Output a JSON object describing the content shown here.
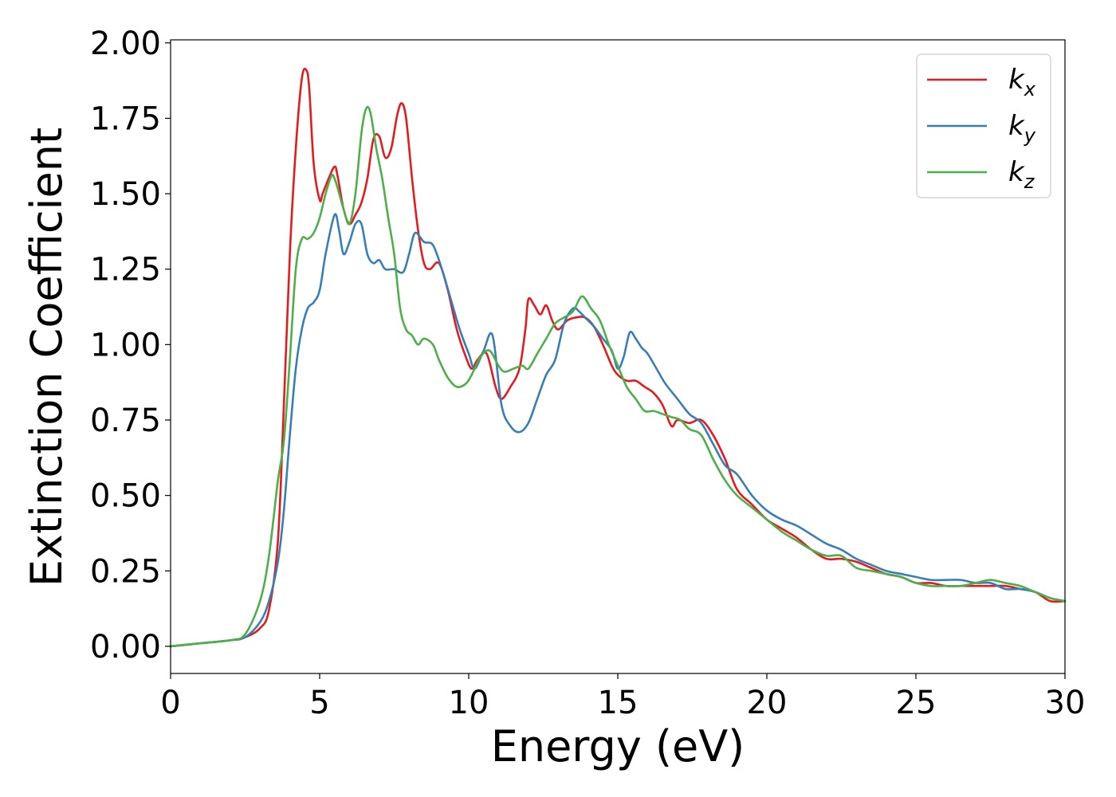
{
  "chart_data": {
    "type": "line",
    "title": "",
    "xlabel": "Energy (eV)",
    "ylabel": "Extinction Coefficient",
    "xlim": [
      0,
      30
    ],
    "ylim": [
      -0.09,
      2.01
    ],
    "xticks": [
      0,
      5,
      10,
      15,
      20,
      25,
      30
    ],
    "xtick_labels": [
      "0",
      "5",
      "10",
      "15",
      "20",
      "25",
      "30"
    ],
    "yticks": [
      0.0,
      0.25,
      0.5,
      0.75,
      1.0,
      1.25,
      1.5,
      1.75,
      2.0
    ],
    "ytick_labels": [
      "0.00",
      "0.25",
      "0.50",
      "0.75",
      "1.00",
      "1.25",
      "1.50",
      "1.75",
      "2.00"
    ],
    "grid": false,
    "legend_position": "top-right",
    "series": [
      {
        "name": "k",
        "subscript": "x",
        "color": "#e41a1c",
        "x": [
          0,
          1,
          2,
          2.5,
          3,
          3.3,
          3.6,
          3.8,
          4.0,
          4.2,
          4.4,
          4.55,
          4.65,
          4.8,
          5.0,
          5.1,
          5.3,
          5.5,
          5.6,
          5.8,
          6.0,
          6.2,
          6.4,
          6.6,
          6.8,
          7.0,
          7.2,
          7.4,
          7.6,
          7.75,
          7.9,
          8.1,
          8.3,
          8.5,
          8.7,
          9.0,
          9.3,
          9.6,
          9.9,
          10.1,
          10.3,
          10.6,
          10.9,
          11.1,
          11.4,
          11.7,
          11.9,
          12.0,
          12.2,
          12.4,
          12.6,
          12.8,
          13.0,
          13.3,
          13.6,
          13.9,
          14.2,
          14.5,
          14.8,
          15.0,
          15.3,
          15.6,
          15.9,
          16.2,
          16.5,
          16.8,
          17.0,
          17.4,
          17.8,
          18.2,
          18.6,
          19.0,
          19.5,
          20.0,
          20.5,
          21.0,
          21.5,
          22.0,
          22.5,
          23.0,
          23.5,
          24.0,
          24.5,
          25.0,
          25.5,
          26.0,
          26.5,
          27.0,
          27.5,
          28.0,
          28.5,
          29.0,
          29.5,
          30.0
        ],
        "y": [
          0.0,
          0.01,
          0.02,
          0.03,
          0.06,
          0.12,
          0.35,
          0.8,
          1.3,
          1.65,
          1.88,
          1.91,
          1.85,
          1.6,
          1.48,
          1.5,
          1.55,
          1.59,
          1.56,
          1.45,
          1.4,
          1.43,
          1.47,
          1.55,
          1.68,
          1.69,
          1.62,
          1.65,
          1.76,
          1.8,
          1.75,
          1.55,
          1.38,
          1.27,
          1.25,
          1.27,
          1.18,
          1.05,
          0.96,
          0.92,
          0.95,
          0.97,
          0.86,
          0.82,
          0.86,
          0.92,
          1.05,
          1.15,
          1.13,
          1.1,
          1.13,
          1.08,
          1.05,
          1.08,
          1.09,
          1.09,
          1.06,
          1.0,
          0.93,
          0.9,
          0.88,
          0.88,
          0.86,
          0.84,
          0.8,
          0.73,
          0.75,
          0.74,
          0.75,
          0.7,
          0.62,
          0.52,
          0.47,
          0.42,
          0.39,
          0.36,
          0.32,
          0.29,
          0.29,
          0.28,
          0.26,
          0.24,
          0.23,
          0.21,
          0.21,
          0.2,
          0.2,
          0.2,
          0.2,
          0.2,
          0.19,
          0.18,
          0.15,
          0.15
        ]
      },
      {
        "name": "k",
        "subscript": "y",
        "color": "#377eb8",
        "x": [
          0,
          1,
          2,
          2.5,
          3,
          3.3,
          3.6,
          3.8,
          4.0,
          4.2,
          4.4,
          4.6,
          4.8,
          5.0,
          5.2,
          5.5,
          5.65,
          5.8,
          6.0,
          6.2,
          6.4,
          6.6,
          6.8,
          7.0,
          7.2,
          7.5,
          7.8,
          8.0,
          8.2,
          8.5,
          8.8,
          9.1,
          9.4,
          9.7,
          10.0,
          10.2,
          10.5,
          10.8,
          11.1,
          11.4,
          11.7,
          12.0,
          12.3,
          12.6,
          12.9,
          13.2,
          13.5,
          13.7,
          13.9,
          14.2,
          14.5,
          14.8,
          15.0,
          15.2,
          15.4,
          15.6,
          15.8,
          16.0,
          16.3,
          16.6,
          17.0,
          17.4,
          17.8,
          18.2,
          18.6,
          19.0,
          19.5,
          20.0,
          20.5,
          21.0,
          21.5,
          22.0,
          22.5,
          23.0,
          23.5,
          24.0,
          24.5,
          25.0,
          25.5,
          26.0,
          26.5,
          27.0,
          27.5,
          28.0,
          28.5,
          29.0,
          29.5,
          30.0
        ],
        "y": [
          0.0,
          0.01,
          0.02,
          0.03,
          0.08,
          0.15,
          0.28,
          0.45,
          0.7,
          0.92,
          1.05,
          1.12,
          1.14,
          1.18,
          1.3,
          1.43,
          1.38,
          1.3,
          1.34,
          1.4,
          1.4,
          1.3,
          1.27,
          1.28,
          1.25,
          1.25,
          1.24,
          1.3,
          1.37,
          1.34,
          1.33,
          1.25,
          1.15,
          1.05,
          0.97,
          0.92,
          0.98,
          1.03,
          0.8,
          0.73,
          0.71,
          0.74,
          0.82,
          0.9,
          0.95,
          1.07,
          1.12,
          1.11,
          1.09,
          1.06,
          1.02,
          0.98,
          0.92,
          0.96,
          1.04,
          1.02,
          0.99,
          0.97,
          0.92,
          0.87,
          0.82,
          0.77,
          0.74,
          0.67,
          0.6,
          0.57,
          0.5,
          0.45,
          0.42,
          0.4,
          0.37,
          0.34,
          0.32,
          0.29,
          0.27,
          0.25,
          0.24,
          0.23,
          0.22,
          0.22,
          0.22,
          0.21,
          0.21,
          0.19,
          0.19,
          0.18,
          0.16,
          0.15
        ]
      },
      {
        "name": "k",
        "subscript": "z",
        "color": "#4daf4a",
        "x": [
          0,
          1,
          2,
          2.5,
          3,
          3.3,
          3.6,
          3.8,
          4.0,
          4.2,
          4.4,
          4.6,
          4.8,
          5.0,
          5.2,
          5.4,
          5.5,
          5.6,
          5.8,
          6.0,
          6.2,
          6.4,
          6.55,
          6.7,
          6.9,
          7.1,
          7.3,
          7.5,
          7.7,
          7.9,
          8.1,
          8.3,
          8.5,
          8.8,
          9.0,
          9.3,
          9.6,
          9.9,
          10.1,
          10.4,
          10.7,
          11.0,
          11.2,
          11.5,
          11.8,
          12.0,
          12.3,
          12.6,
          12.9,
          13.2,
          13.5,
          13.8,
          14.1,
          14.4,
          14.7,
          15.0,
          15.3,
          15.6,
          15.9,
          16.2,
          16.5,
          16.8,
          17.1,
          17.4,
          17.8,
          18.2,
          18.6,
          19.0,
          19.5,
          20.0,
          20.5,
          21.0,
          21.5,
          22.0,
          22.5,
          23.0,
          23.5,
          24.0,
          24.5,
          25.0,
          25.5,
          26.0,
          26.5,
          27.0,
          27.5,
          28.0,
          28.5,
          29.0,
          29.5,
          30.0
        ],
        "y": [
          0.0,
          0.01,
          0.02,
          0.04,
          0.15,
          0.3,
          0.55,
          0.68,
          0.95,
          1.25,
          1.35,
          1.35,
          1.37,
          1.42,
          1.5,
          1.56,
          1.55,
          1.52,
          1.45,
          1.4,
          1.5,
          1.7,
          1.78,
          1.77,
          1.65,
          1.55,
          1.42,
          1.3,
          1.12,
          1.05,
          1.03,
          1.0,
          1.02,
          1.0,
          0.95,
          0.89,
          0.86,
          0.87,
          0.9,
          0.96,
          0.98,
          0.93,
          0.91,
          0.92,
          0.93,
          0.92,
          0.97,
          1.02,
          1.07,
          1.09,
          1.11,
          1.16,
          1.12,
          1.08,
          1.0,
          0.93,
          0.86,
          0.82,
          0.78,
          0.78,
          0.77,
          0.76,
          0.75,
          0.72,
          0.7,
          0.62,
          0.55,
          0.5,
          0.46,
          0.42,
          0.38,
          0.35,
          0.32,
          0.3,
          0.3,
          0.26,
          0.25,
          0.24,
          0.23,
          0.21,
          0.2,
          0.2,
          0.2,
          0.21,
          0.22,
          0.21,
          0.2,
          0.18,
          0.16,
          0.15
        ]
      }
    ]
  }
}
